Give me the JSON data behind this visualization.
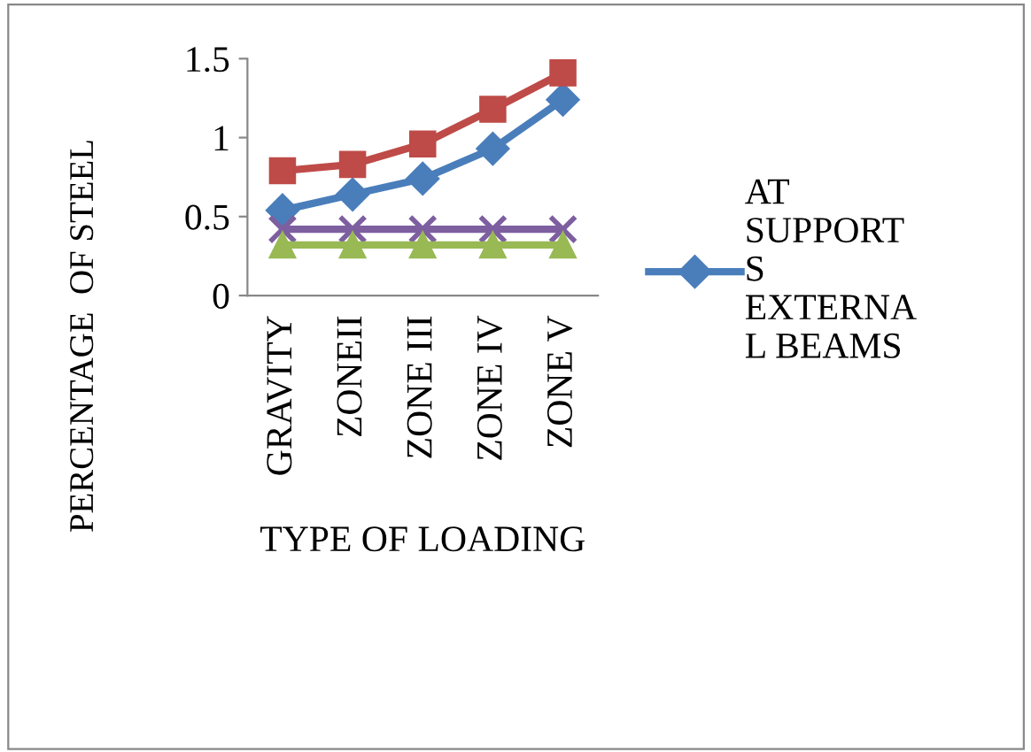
{
  "chart_data": {
    "type": "line",
    "xlabel": "TYPE OF LOADING",
    "ylabel": "PERCENTAGE  OF STEEL",
    "categories": [
      "GRAVITY",
      "ZONEII",
      "ZONE III",
      "ZONE IV",
      "ZONE V"
    ],
    "series": [
      {
        "name": "AT\nSUPPORT\nS\nEXTERNA\nL BEAMS",
        "color": "#4a7ebb",
        "marker": "diamond",
        "values": [
          0.54,
          0.64,
          0.74,
          0.93,
          1.24
        ]
      },
      {
        "color": "#be4b48",
        "marker": "square",
        "values": [
          0.79,
          0.83,
          0.96,
          1.18,
          1.41
        ]
      },
      {
        "color": "#7d5fa0",
        "marker": "cross",
        "values": [
          0.42,
          0.42,
          0.42,
          0.42,
          0.42
        ]
      },
      {
        "color": "#98b954",
        "marker": "triangle",
        "values": [
          0.32,
          0.32,
          0.32,
          0.32,
          0.32
        ]
      }
    ],
    "ylim": [
      0,
      1.5
    ],
    "yticks": [
      0,
      0.5,
      1,
      1.5
    ],
    "grid": false,
    "legend": "right"
  }
}
